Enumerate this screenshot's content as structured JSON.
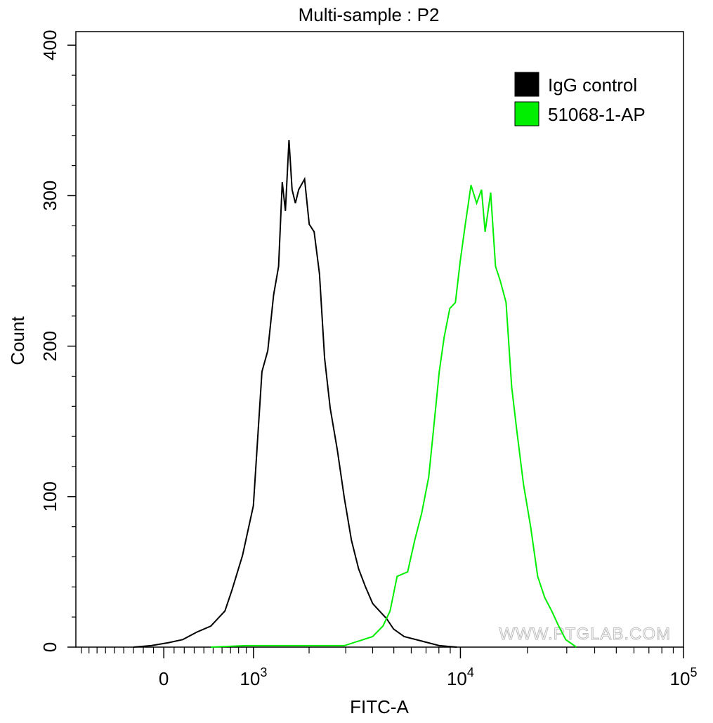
{
  "chart_data": {
    "type": "line",
    "title": "Multi-sample : P2",
    "xlabel": "FITC-A",
    "ylabel": "Count",
    "watermark": "WWW.PTGLAB.COM",
    "xscale": "arcsinh",
    "xscale_cofactor": 941,
    "xlim": [
      -975,
      100000
    ],
    "xticks": [
      0,
      {
        "value": 1000,
        "label": "10",
        "sup": "3"
      },
      {
        "value": 10000,
        "label": "10",
        "sup": "4"
      },
      {
        "value": 100000,
        "label": "10",
        "sup": "5"
      }
    ],
    "xminor_ticks": [
      -900,
      -800,
      -700,
      -600,
      -500,
      -400,
      -300,
      -200,
      -100,
      100,
      200,
      300,
      400,
      500,
      600,
      700,
      800,
      900,
      2000,
      3000,
      4000,
      5000,
      6000,
      7000,
      8000,
      9000,
      20000,
      30000,
      40000,
      50000,
      60000,
      70000,
      80000,
      90000
    ],
    "ylim": [
      0,
      409
    ],
    "yticks": [
      0,
      100,
      200,
      300,
      400
    ],
    "yminor_ticks": [
      20,
      40,
      60,
      80,
      120,
      140,
      160,
      180,
      220,
      240,
      260,
      280,
      320,
      340,
      360,
      380
    ],
    "legend": "top-right",
    "series": [
      {
        "name": "IgG control",
        "color": "#000000",
        "x": [
          -298,
          -123,
          48,
          185,
          327,
          475,
          633,
          718,
          851,
          998,
          1124,
          1214,
          1308,
          1393,
          1458,
          1515,
          1581,
          1641,
          1707,
          1774,
          1900,
          2003,
          2117,
          2249,
          2381,
          2531,
          2738,
          2955,
          3190,
          3444,
          3708,
          3999,
          4300,
          4630,
          4987,
          5571,
          6691,
          8027,
          9636
        ],
        "values": [
          0,
          1,
          3,
          5,
          10,
          14,
          24,
          38,
          61,
          94,
          183,
          197,
          234,
          253,
          309,
          290,
          337,
          304,
          295,
          304,
          311,
          281,
          276,
          248,
          192,
          159,
          131,
          99,
          71,
          52,
          40,
          29,
          24,
          19,
          12,
          7,
          4,
          1,
          0
        ]
      },
      {
        "name": "51068-1-AP",
        "color": "#00ee00",
        "x": [
          475,
          899,
          1458,
          2164,
          2955,
          3444,
          3999,
          4460,
          4808,
          5176,
          5778,
          6220,
          6691,
          7199,
          7632,
          8027,
          8450,
          8958,
          9495,
          9994,
          10520,
          11160,
          11830,
          12440,
          12910,
          13680,
          14380,
          15130,
          16030,
          16990,
          17870,
          19210,
          20660,
          22220,
          23890,
          25680,
          27600,
          29690,
          33120
        ],
        "values": [
          0,
          1,
          1,
          1,
          1,
          4,
          7,
          14,
          24,
          47,
          50,
          71,
          89,
          113,
          150,
          183,
          206,
          225,
          229,
          257,
          281,
          307,
          295,
          304,
          276,
          302,
          253,
          243,
          229,
          173,
          145,
          108,
          80,
          47,
          33,
          24,
          14,
          5,
          0
        ]
      }
    ]
  }
}
